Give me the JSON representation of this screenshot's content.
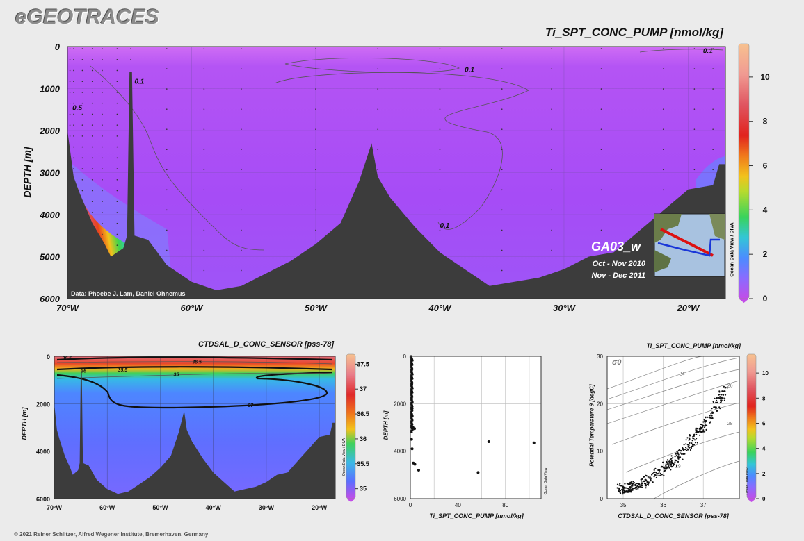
{
  "header": {
    "logo": "eGEOTRACES",
    "copyright": "© 2021 Reiner Schlitzer, Alfred Wegener Institute, Bremerhaven, Germany"
  },
  "main_section": {
    "title": "Ti_SPT_CONC_PUMP [nmol/kg]",
    "ylabel": "DEPTH [m]",
    "credit": "Data: Phoebe J. Lam, Daniel Ohnemus",
    "cruise": "GA03_w",
    "dates": [
      "Oct - Nov 2010",
      "Nov - Dec 2011"
    ],
    "colorbar_caption": "Ocean Data View / DIVA"
  },
  "salinity_section": {
    "title": "CTDSAL_D_CONC_SENSOR [pss-78]",
    "ylabel": "DEPTH [m]",
    "colorbar_caption": "Ocean Data View / DIVA"
  },
  "profile_plot": {
    "xlabel": "Ti_SPT_CONC_PUMP [nmol/kg]",
    "ylabel": "DEPTH [m]",
    "caption": "Ocean Data View"
  },
  "ts_plot": {
    "title": "Ti_SPT_CONC_PUMP [nmol/kg]",
    "xlabel": "CTDSAL_D_CONC_SENSOR [pss-78]",
    "ylabel": "Potential Temperature θ [degC]",
    "sigma_label": "σ0",
    "caption": "Ocean Data View"
  },
  "chart_data": [
    {
      "id": "main-section",
      "type": "heatmap",
      "title": "Ti_SPT_CONC_PUMP [nmol/kg]",
      "ylabel": "DEPTH [m]",
      "x_ticks": [
        "70°W",
        "60°W",
        "50°W",
        "40°W",
        "30°W",
        "20°W"
      ],
      "x_tick_values": [
        -70,
        -60,
        -50,
        -40,
        -30,
        -20
      ],
      "xlim": [
        -70,
        -17
      ],
      "y_ticks": [
        0,
        1000,
        2000,
        3000,
        4000,
        5000,
        6000
      ],
      "ylim": [
        6000,
        0
      ],
      "colorbar": {
        "ticks": [
          0,
          2,
          4,
          6,
          8,
          10
        ],
        "range": [
          0,
          11.5
        ]
      },
      "contours": [
        {
          "label": "0.1",
          "x": -38,
          "y": 540
        },
        {
          "label": "0.1",
          "x": -18.8,
          "y": 90
        },
        {
          "label": "0.1",
          "x": -64.6,
          "y": 820
        },
        {
          "label": "0.5",
          "x": -69.6,
          "y": 1450
        },
        {
          "label": "0.1",
          "x": -40,
          "y": 4250
        }
      ],
      "bathymetry": [
        [
          -70,
          2000
        ],
        [
          -69.5,
          3100
        ],
        [
          -69,
          3500
        ],
        [
          -68,
          4200
        ],
        [
          -67,
          4700
        ],
        [
          -66.5,
          5000
        ],
        [
          -65.5,
          4800
        ],
        [
          -65.2,
          4500
        ],
        [
          -65,
          600
        ],
        [
          -64.8,
          600
        ],
        [
          -64.6,
          4500
        ],
        [
          -63.5,
          4600
        ],
        [
          -62,
          5200
        ],
        [
          -60,
          5600
        ],
        [
          -58,
          5800
        ],
        [
          -56,
          5700
        ],
        [
          -54,
          5400
        ],
        [
          -52,
          5100
        ],
        [
          -50,
          4700
        ],
        [
          -48,
          4200
        ],
        [
          -46.5,
          3200
        ],
        [
          -45.5,
          2300
        ],
        [
          -45,
          3100
        ],
        [
          -44,
          3600
        ],
        [
          -42,
          4300
        ],
        [
          -40,
          4900
        ],
        [
          -38,
          5300
        ],
        [
          -36,
          5700
        ],
        [
          -34,
          5600
        ],
        [
          -32,
          5500
        ],
        [
          -30,
          5300
        ],
        [
          -28,
          5000
        ],
        [
          -26,
          4900
        ],
        [
          -24,
          4400
        ],
        [
          -22,
          3900
        ],
        [
          -20,
          3400
        ],
        [
          -18,
          3300
        ],
        [
          -17.5,
          2800
        ],
        [
          -17,
          2800
        ]
      ],
      "inset_map": {
        "label": "Ocean Data View / DIVA"
      }
    },
    {
      "id": "salinity-section",
      "type": "heatmap",
      "title": "CTDSAL_D_CONC_SENSOR [pss-78]",
      "ylabel": "DEPTH [m]",
      "x_ticks": [
        "70°W",
        "60°W",
        "50°W",
        "40°W",
        "30°W",
        "20°W"
      ],
      "x_tick_values": [
        -70,
        -60,
        -50,
        -40,
        -30,
        -20
      ],
      "xlim": [
        -70,
        -17
      ],
      "y_ticks": [
        0,
        2000,
        4000,
        6000
      ],
      "ylim": [
        6000,
        0
      ],
      "colorbar": {
        "ticks": [
          35,
          35.5,
          36,
          36.5,
          37,
          37.5
        ],
        "range": [
          34.8,
          37.7
        ]
      },
      "contour_labels": [
        "36.5",
        "36",
        "35.5",
        "35",
        "37",
        "36.5"
      ]
    },
    {
      "id": "profile",
      "type": "scatter",
      "xlabel": "Ti_SPT_CONC_PUMP [nmol/kg]",
      "ylabel": "DEPTH [m]",
      "x_ticks": [
        0,
        40,
        80
      ],
      "xlim": [
        0,
        110
      ],
      "y_ticks": [
        0,
        2000,
        4000,
        6000
      ],
      "ylim": [
        6000,
        0
      ],
      "points": [
        [
          0.5,
          30
        ],
        [
          0.8,
          150
        ],
        [
          0.6,
          300
        ],
        [
          1.0,
          600
        ],
        [
          0.7,
          900
        ],
        [
          1.2,
          1200
        ],
        [
          0.9,
          1500
        ],
        [
          1.1,
          1800
        ],
        [
          0.8,
          2000
        ],
        [
          1.5,
          2200
        ],
        [
          0.6,
          2500
        ],
        [
          2.2,
          3000
        ],
        [
          3.5,
          3050
        ],
        [
          1.0,
          3500
        ],
        [
          1.5,
          3900
        ],
        [
          2.5,
          4500
        ],
        [
          3.8,
          4550
        ],
        [
          7,
          4800
        ],
        [
          57,
          4900
        ],
        [
          66,
          3600
        ],
        [
          104,
          3650
        ]
      ]
    },
    {
      "id": "ts-diagram",
      "type": "scatter",
      "title": "Ti_SPT_CONC_PUMP [nmol/kg]",
      "xlabel": "CTDSAL_D_CONC_SENSOR [pss-78]",
      "ylabel": "Potential Temperature θ [degC]",
      "x_ticks": [
        35,
        36,
        37
      ],
      "xlim": [
        34.6,
        37.9
      ],
      "y_ticks": [
        0,
        10,
        20,
        30
      ],
      "ylim": [
        0,
        30
      ],
      "isopycnals": [
        "24",
        "26",
        "28",
        "29"
      ],
      "colorbar": {
        "ticks": [
          0,
          2,
          4,
          6,
          8,
          10
        ],
        "range": [
          0,
          11.5
        ]
      }
    }
  ]
}
